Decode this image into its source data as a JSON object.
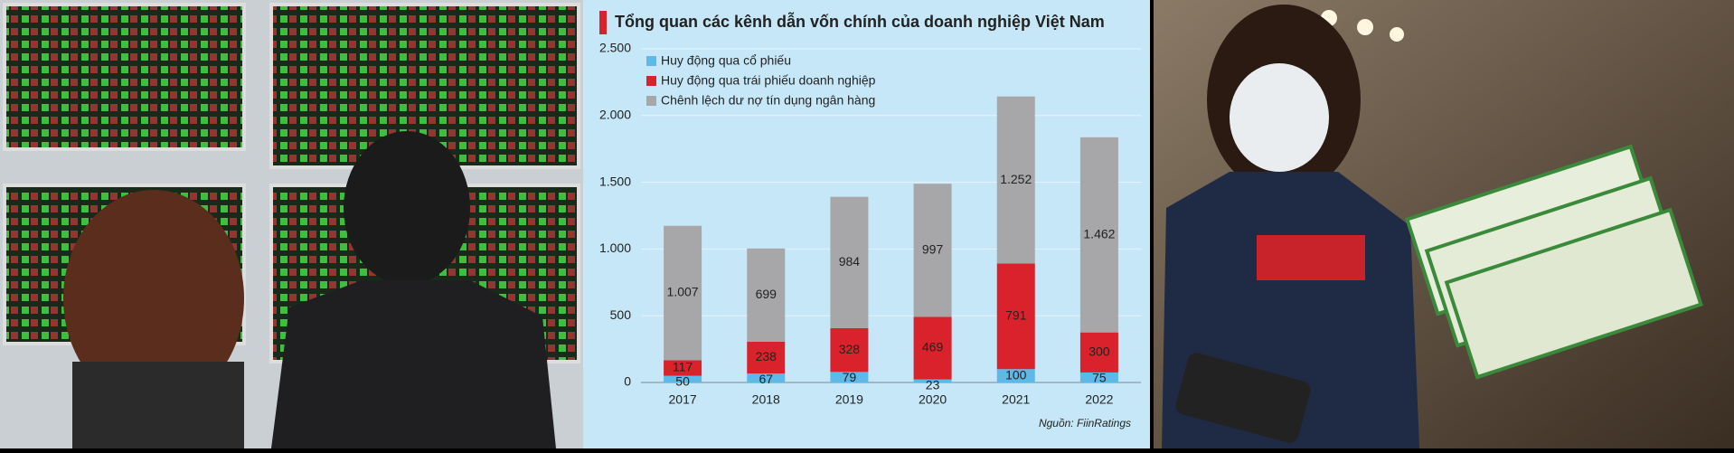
{
  "chart_data": {
    "type": "bar",
    "stacked": true,
    "title": "Tổng quan các kênh dẫn vốn chính của doanh nghiệp Việt Nam",
    "source": "Nguồn: FiinRatings",
    "categories": [
      "2017",
      "2018",
      "2019",
      "2020",
      "2021",
      "2022"
    ],
    "series": [
      {
        "name": "Huy động qua cổ phiếu",
        "color": "#5cb9e8",
        "values": [
          50,
          67,
          79,
          23,
          100,
          75
        ]
      },
      {
        "name": "Huy động qua trái phiếu doanh nghiệp",
        "color": "#d9222b",
        "values": [
          117,
          238,
          328,
          469,
          791,
          300
        ]
      },
      {
        "name": "Chênh lệch dư nợ tín dụng ngân hàng",
        "color": "#a7a7a9",
        "values": [
          1007,
          699,
          984,
          997,
          1252,
          1462
        ],
        "value_labels": [
          "1.007",
          "699",
          "984",
          "997",
          "1.252",
          "1.462"
        ]
      }
    ],
    "ylim": [
      0,
      2500
    ],
    "yticks": [
      0,
      500,
      {
        "value": 1000,
        "label": "1.000"
      },
      {
        "value": 1500,
        "label": "1.500"
      },
      {
        "value": 2000,
        "label": "2.000"
      },
      {
        "value": 2500,
        "label": "2.500"
      }
    ],
    "grid": true,
    "legend": "top-left"
  }
}
